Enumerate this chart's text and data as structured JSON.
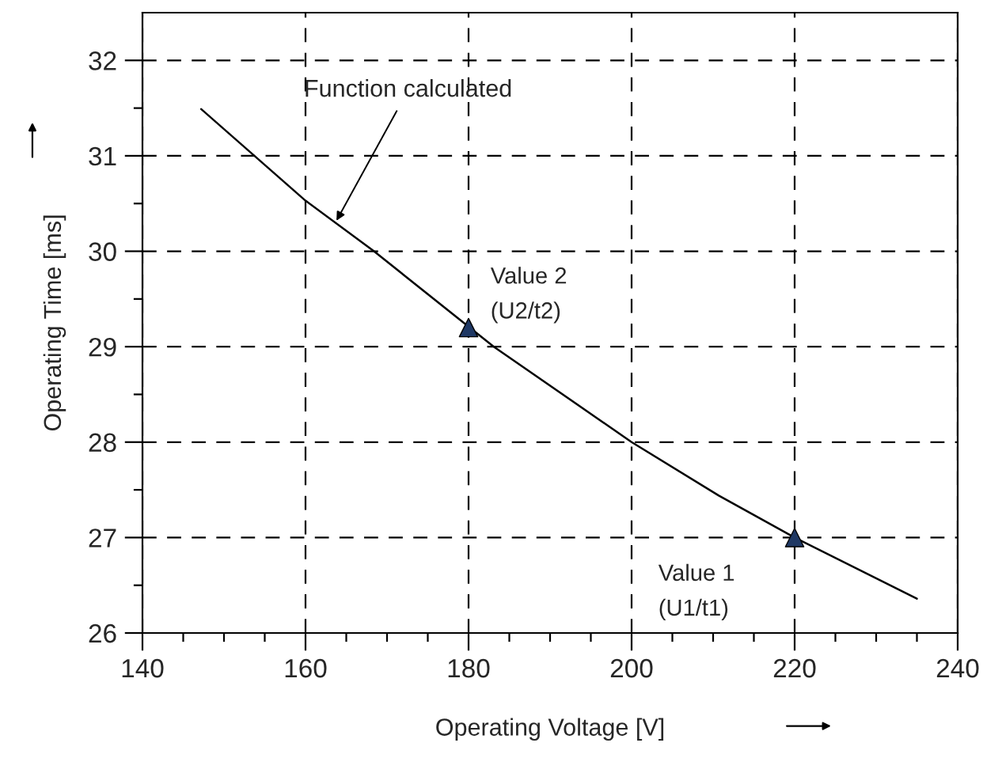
{
  "chart_data": {
    "type": "line",
    "xlabel": "Operating Voltage [V]",
    "ylabel": "Operating Time [ms]",
    "xlim": [
      140,
      240
    ],
    "xticks": [
      140,
      160,
      180,
      200,
      220,
      240
    ],
    "ylim": [
      26,
      32.5
    ],
    "yticks": [
      26,
      27,
      28,
      29,
      30,
      31,
      32
    ],
    "grid": true,
    "series": [
      {
        "color": "#000000",
        "marker": "none",
        "x": [
          147.2,
          160,
          168.4,
          183.1,
          200,
          210.7,
          220,
          235
        ],
        "values": [
          31.49,
          30.53,
          30.0,
          29.0,
          28.0,
          27.44,
          27.0,
          26.36
        ]
      },
      {
        "type": "scatter",
        "color": "#1f3864",
        "marker": "triangle",
        "x": [
          180,
          220
        ],
        "values": [
          29.2,
          27.0
        ]
      }
    ],
    "annotations": [
      {
        "text": "Function calculated",
        "x": 163.8,
        "y": 30.32
      },
      {
        "text": "Value 2\n(U2/t2)",
        "x": 180,
        "y": 29.2
      },
      {
        "text": "Value 1\n(U1/t1)",
        "x": 220,
        "y": 27.0
      }
    ]
  }
}
